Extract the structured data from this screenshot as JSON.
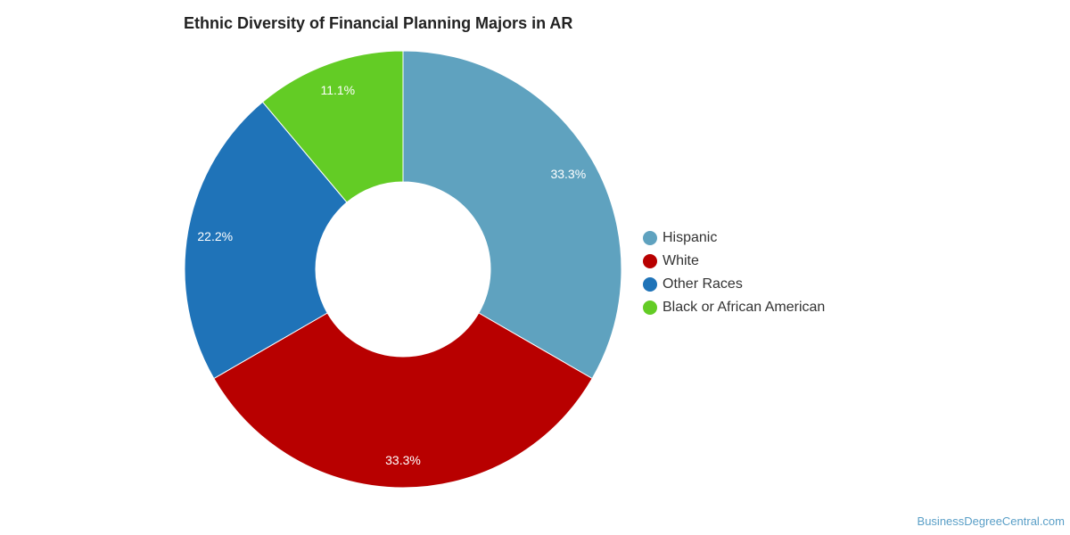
{
  "chart_data": {
    "type": "pie",
    "variant": "donut",
    "title": "Ethnic Diversity of Financial Planning Majors in AR",
    "slices": [
      {
        "label": "Hispanic",
        "value": 33.3,
        "display": "33.3%",
        "color": "#5fa2bf"
      },
      {
        "label": "White",
        "value": 33.3,
        "display": "33.3%",
        "color": "#b80000"
      },
      {
        "label": "Other Races",
        "value": 22.2,
        "display": "22.2%",
        "color": "#1f73b8"
      },
      {
        "label": "Black or African American",
        "value": 11.1,
        "display": "11.1%",
        "color": "#63cc25"
      }
    ],
    "legend": {
      "placement": "right",
      "items": [
        "Hispanic",
        "White",
        "Other Races",
        "Black or African American"
      ]
    }
  },
  "credit": "BusinessDegreeCentral.com"
}
